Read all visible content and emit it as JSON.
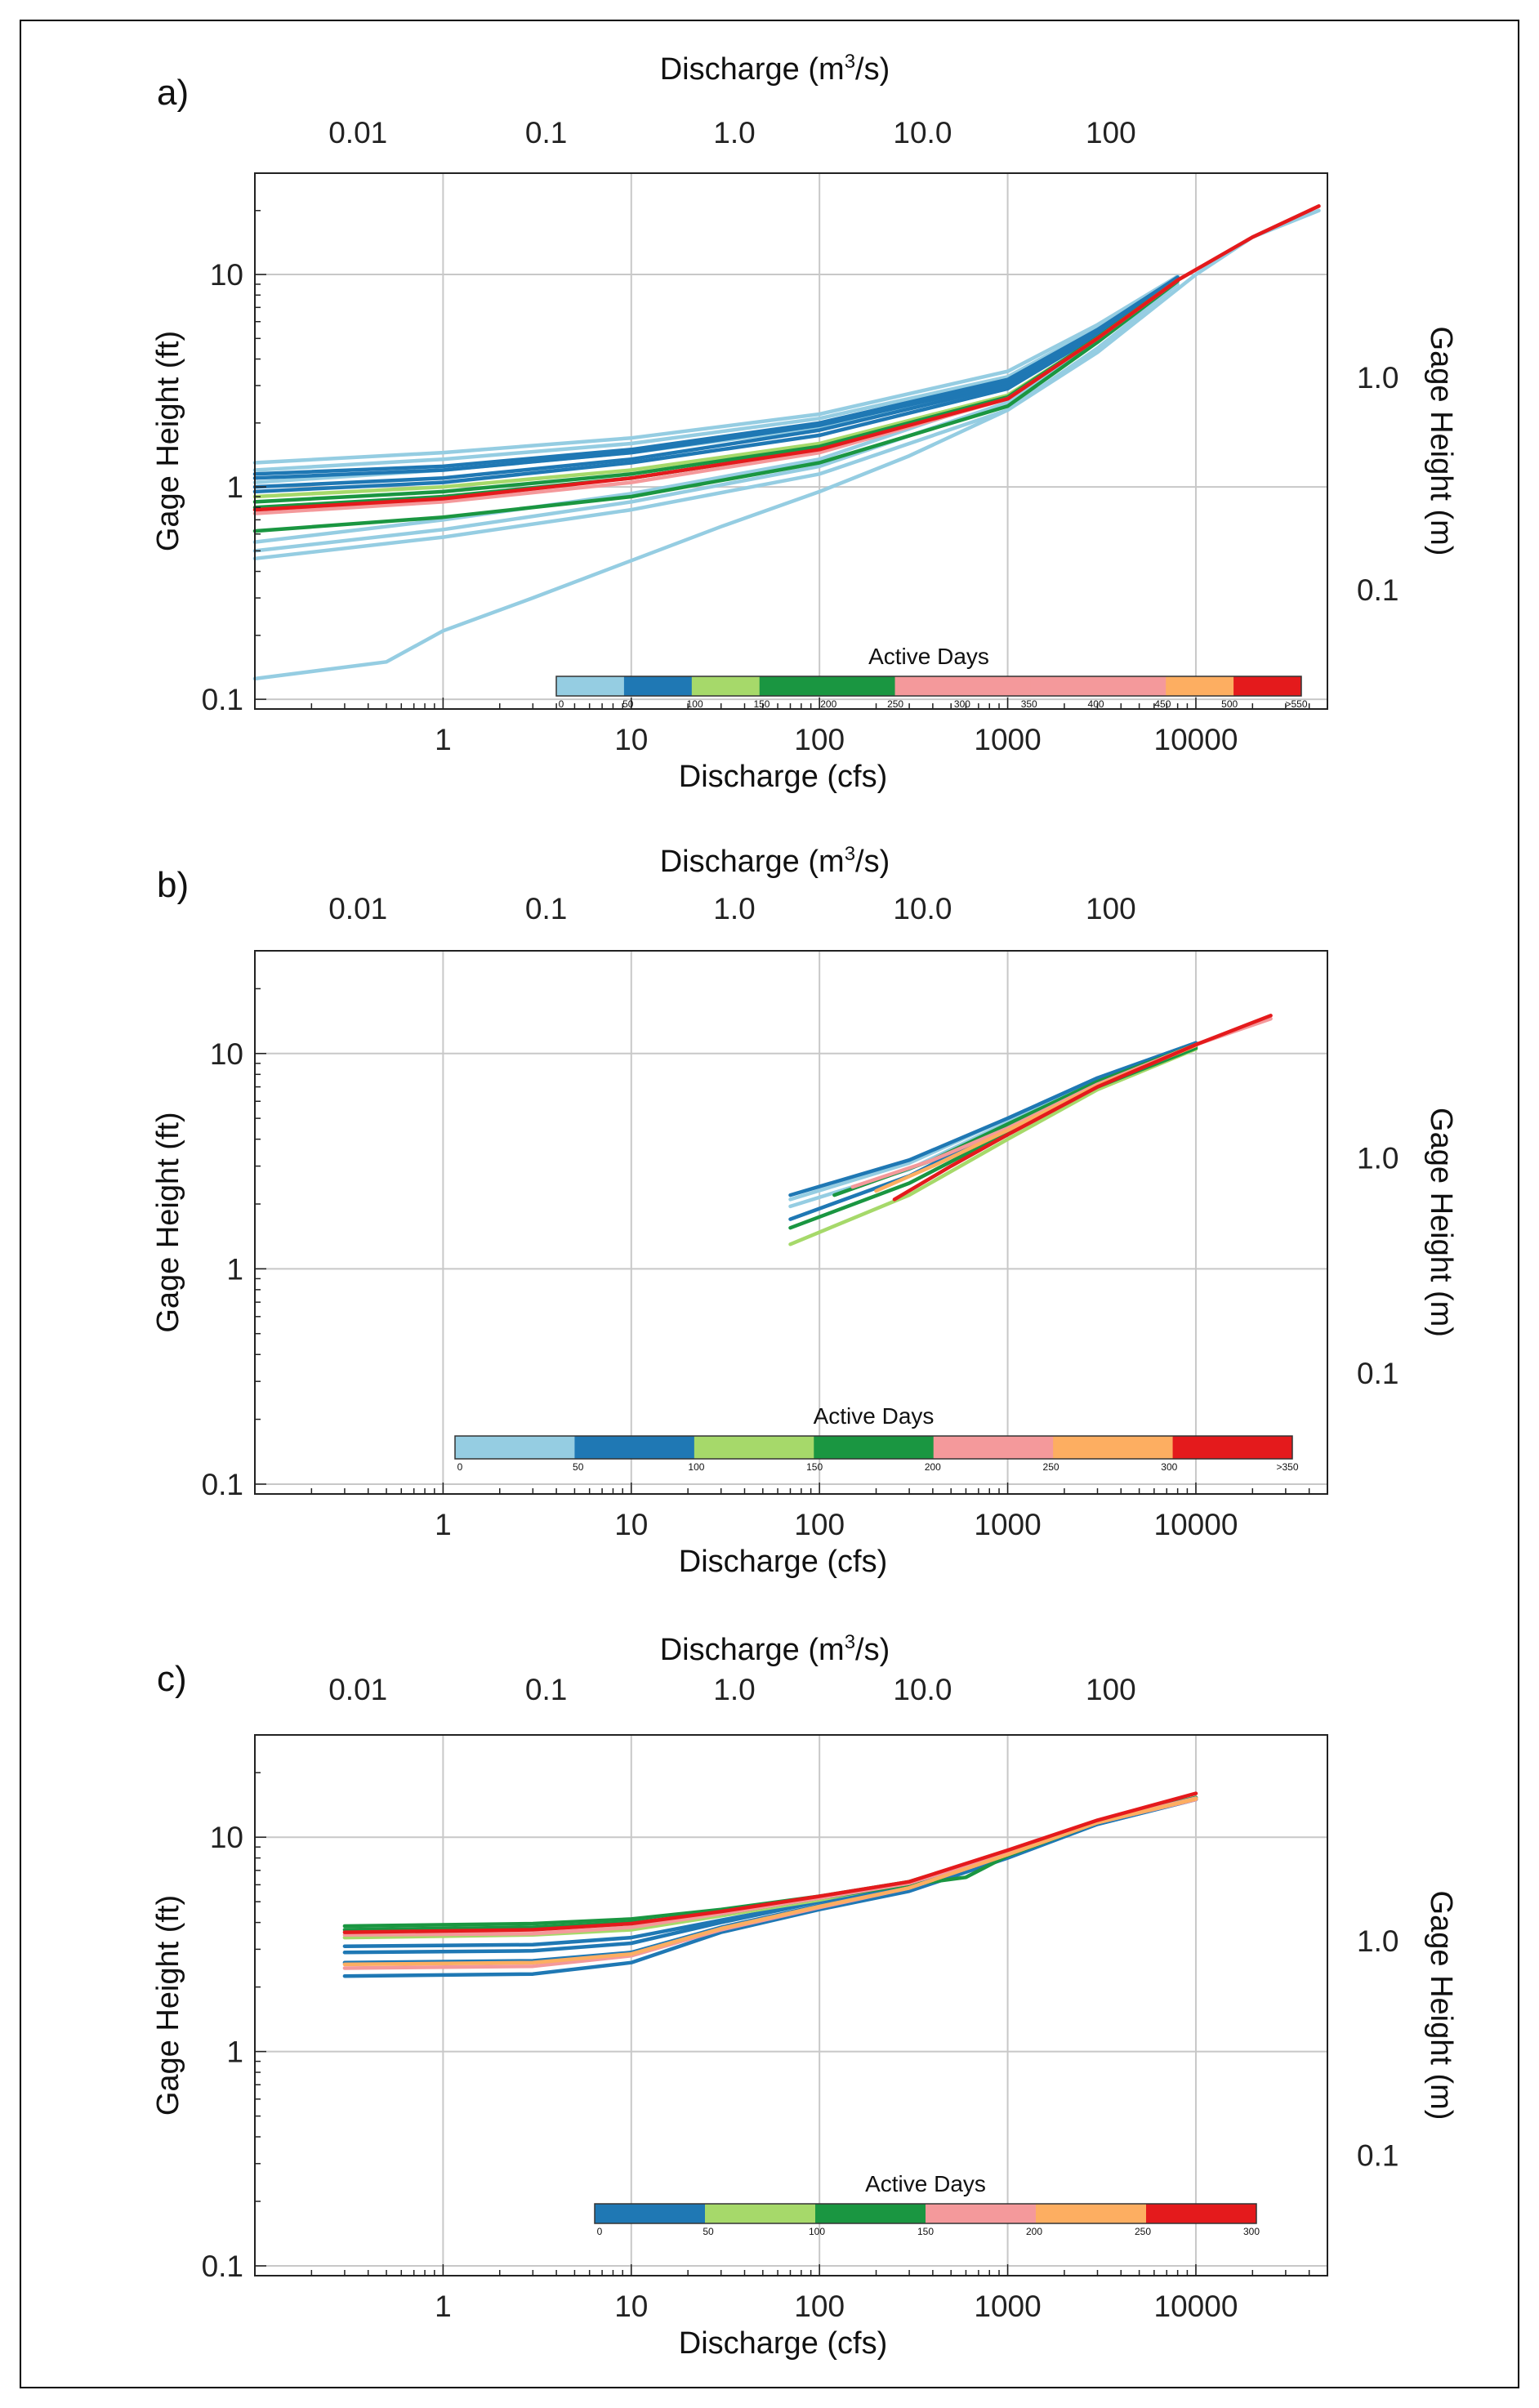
{
  "chart_data": [
    {
      "type": "line",
      "panel_label": "a)",
      "xlabel": "Discharge (cfs)",
      "xlabel_top_main": "Discharge (m",
      "xlabel_top_sup": "3",
      "xlabel_top_tail": "/s)",
      "ylabel": "Gage Height (ft)",
      "ylabel_right": "Gage Height (m)",
      "x_scale": "log",
      "xlim": [
        0.1,
        50000
      ],
      "y_scale": "log",
      "ylim": [
        0.09,
        30
      ],
      "x_ticks": [
        {
          "v": 1,
          "t": "1"
        },
        {
          "v": 10,
          "t": "10"
        },
        {
          "v": 100,
          "t": "100"
        },
        {
          "v": 1000,
          "t": "1000"
        },
        {
          "v": 10000,
          "t": "10000"
        }
      ],
      "y_ticks": [
        {
          "v": 0.1,
          "t": "0.1"
        },
        {
          "v": 1,
          "t": "1"
        },
        {
          "v": 10,
          "t": "10"
        }
      ],
      "top_ticks": [
        {
          "v": 0.01,
          "t": "0.01"
        },
        {
          "v": 0.1,
          "t": "0.1"
        },
        {
          "v": 1.0,
          "t": "1.0"
        },
        {
          "v": 10.0,
          "t": "10.0"
        },
        {
          "v": 100,
          "t": "100"
        }
      ],
      "right_ticks": [
        {
          "v": 0.1,
          "t": "0.1"
        },
        {
          "v": 1.0,
          "t": "1.0"
        }
      ],
      "colorbar": {
        "title": "Active Days",
        "colors": [
          "#95cde2",
          "#1f78b4",
          "#a6d96a",
          "#1a9641",
          "#f4999b",
          "#f4999b",
          "#fdae61",
          "#e41a1c"
        ],
        "widths": [
          1,
          1,
          1,
          2,
          2,
          2,
          1,
          1
        ],
        "labels": [
          "0",
          "50",
          "100",
          "150",
          "200",
          "250",
          "300",
          "350",
          "400",
          "450",
          "500",
          ">550"
        ]
      },
      "series": [
        {
          "color": "#95cde2",
          "x": [
            0.1,
            0.5,
            1,
            3,
            10,
            30,
            100,
            300,
            1000,
            3000,
            10000,
            20000,
            45000
          ],
          "y": [
            0.125,
            0.15,
            0.21,
            0.3,
            0.45,
            0.65,
            0.95,
            1.4,
            2.3,
            4.3,
            10,
            15,
            20
          ]
        },
        {
          "color": "#95cde2",
          "x": [
            0.1,
            1,
            10,
            100,
            1000,
            3000,
            8000
          ],
          "y": [
            0.46,
            0.58,
            0.78,
            1.15,
            2.3,
            4.5,
            9
          ]
        },
        {
          "color": "#95cde2",
          "x": [
            0.1,
            1,
            10,
            100,
            1000,
            3000,
            8000
          ],
          "y": [
            0.5,
            0.63,
            0.85,
            1.25,
            2.5,
            4.8,
            9.3
          ]
        },
        {
          "color": "#95cde2",
          "x": [
            0.1,
            1,
            10,
            100,
            1000,
            3000,
            8000
          ],
          "y": [
            0.55,
            0.7,
            0.93,
            1.35,
            2.7,
            5.0,
            9.5
          ]
        },
        {
          "color": "#95cde2",
          "x": [
            0.1,
            1,
            10,
            100,
            1000,
            3000,
            8000
          ],
          "y": [
            1.05,
            1.2,
            1.45,
            1.9,
            3.0,
            5.3,
            9.5
          ]
        },
        {
          "color": "#95cde2",
          "x": [
            0.1,
            1,
            10,
            100,
            1000,
            3000,
            8000
          ],
          "y": [
            1.2,
            1.35,
            1.6,
            2.1,
            3.3,
            5.6,
            9.7
          ]
        },
        {
          "color": "#95cde2",
          "x": [
            0.1,
            1,
            10,
            100,
            1000,
            3000,
            8000
          ],
          "y": [
            1.3,
            1.45,
            1.7,
            2.2,
            3.5,
            5.8,
            9.8
          ]
        },
        {
          "color": "#1f78b4",
          "x": [
            0.1,
            1,
            10,
            100,
            1000,
            3000,
            8000
          ],
          "y": [
            0.95,
            1.05,
            1.3,
            1.75,
            2.9,
            5.2,
            9.5
          ]
        },
        {
          "color": "#1f78b4",
          "x": [
            0.1,
            1,
            10,
            100,
            1000,
            3000,
            8000
          ],
          "y": [
            1.0,
            1.1,
            1.35,
            1.85,
            3.0,
            5.3,
            9.6
          ]
        },
        {
          "color": "#1f78b4",
          "x": [
            0.1,
            1,
            10,
            100,
            1000,
            3000,
            8000
          ],
          "y": [
            1.1,
            1.2,
            1.45,
            1.95,
            3.1,
            5.4,
            9.7
          ]
        },
        {
          "color": "#1f78b4",
          "x": [
            0.1,
            1,
            10,
            100,
            1000,
            3000,
            8000
          ],
          "y": [
            1.15,
            1.25,
            1.5,
            2.0,
            3.2,
            5.5,
            9.7
          ]
        },
        {
          "color": "#a6d96a",
          "x": [
            0.1,
            1,
            10,
            100,
            1000,
            3000,
            8000
          ],
          "y": [
            0.9,
            1.0,
            1.2,
            1.6,
            2.7,
            5.0,
            9.4
          ]
        },
        {
          "color": "#1a9641",
          "x": [
            0.1,
            1,
            10,
            100,
            1000,
            3000,
            8000
          ],
          "y": [
            0.62,
            0.72,
            0.9,
            1.3,
            2.4,
            4.8,
            9.3
          ]
        },
        {
          "color": "#1a9641",
          "x": [
            0.1,
            1,
            10,
            100,
            1000,
            3000,
            8000
          ],
          "y": [
            0.8,
            0.9,
            1.1,
            1.5,
            2.6,
            5.0,
            9.4
          ]
        },
        {
          "color": "#1a9641",
          "x": [
            0.1,
            1,
            10,
            100,
            1000,
            3000,
            8000
          ],
          "y": [
            0.85,
            0.95,
            1.15,
            1.55,
            2.65,
            5.05,
            9.4
          ]
        },
        {
          "color": "#f4999b",
          "x": [
            0.1,
            1,
            10,
            100,
            1000,
            3000,
            8000
          ],
          "y": [
            0.75,
            0.85,
            1.05,
            1.45,
            2.6,
            5.0,
            9.4
          ]
        },
        {
          "color": "#e41a1c",
          "x": [
            0.1,
            1,
            10,
            100,
            1000,
            3000,
            8000,
            20000,
            45000
          ],
          "y": [
            0.78,
            0.88,
            1.1,
            1.5,
            2.6,
            5.0,
            9.4,
            15,
            21
          ]
        }
      ]
    },
    {
      "type": "line",
      "panel_label": "b)",
      "xlabel": "Discharge (cfs)",
      "xlabel_top_main": "Discharge (m",
      "xlabel_top_sup": "3",
      "xlabel_top_tail": "/s)",
      "ylabel": "Gage Height (ft)",
      "ylabel_right": "Gage Height (m)",
      "x_scale": "log",
      "xlim": [
        0.1,
        50000
      ],
      "y_scale": "log",
      "ylim": [
        0.09,
        30
      ],
      "x_ticks": [
        {
          "v": 1,
          "t": "1"
        },
        {
          "v": 10,
          "t": "10"
        },
        {
          "v": 100,
          "t": "100"
        },
        {
          "v": 1000,
          "t": "1000"
        },
        {
          "v": 10000,
          "t": "10000"
        }
      ],
      "y_ticks": [
        {
          "v": 0.1,
          "t": "0.1"
        },
        {
          "v": 1,
          "t": "1"
        },
        {
          "v": 10,
          "t": "10"
        }
      ],
      "top_ticks": [
        {
          "v": 0.01,
          "t": "0.01"
        },
        {
          "v": 0.1,
          "t": "0.1"
        },
        {
          "v": 1.0,
          "t": "1.0"
        },
        {
          "v": 10.0,
          "t": "10.0"
        },
        {
          "v": 100,
          "t": "100"
        }
      ],
      "right_ticks": [
        {
          "v": 0.1,
          "t": "0.1"
        },
        {
          "v": 1.0,
          "t": "1.0"
        }
      ],
      "colorbar": {
        "title": "Active Days",
        "colors": [
          "#95cde2",
          "#1f78b4",
          "#a6d96a",
          "#1a9641",
          "#f4999b",
          "#fdae61",
          "#e41a1c"
        ],
        "widths": [
          1,
          1,
          1,
          1,
          1,
          1,
          1
        ],
        "labels": [
          "0",
          "50",
          "100",
          "150",
          "200",
          "250",
          "300",
          ">350"
        ]
      },
      "series": [
        {
          "color": "#95cde2",
          "x": [
            70,
            300,
            1000,
            3000,
            10000
          ],
          "y": [
            1.95,
            2.9,
            4.8,
            7.5,
            11
          ]
        },
        {
          "color": "#95cde2",
          "x": [
            70,
            300,
            1000,
            3000,
            10000
          ],
          "y": [
            2.1,
            3.1,
            5.0,
            7.7,
            11.2
          ]
        },
        {
          "color": "#1f78b4",
          "x": [
            70,
            300,
            1000,
            3000,
            10000
          ],
          "y": [
            1.7,
            2.7,
            4.6,
            7.3,
            10.8
          ]
        },
        {
          "color": "#1f78b4",
          "x": [
            70,
            300,
            1000,
            3000,
            10000
          ],
          "y": [
            2.2,
            3.2,
            5.0,
            7.7,
            11.2
          ]
        },
        {
          "color": "#a6d96a",
          "x": [
            70,
            300,
            1000,
            3000,
            10000
          ],
          "y": [
            1.3,
            2.2,
            4.0,
            6.8,
            10.5
          ]
        },
        {
          "color": "#1a9641",
          "x": [
            70,
            300,
            1000,
            3000,
            10000
          ],
          "y": [
            1.55,
            2.5,
            4.3,
            7.0,
            10.6
          ]
        },
        {
          "color": "#1a9641",
          "x": [
            120,
            400,
            1000,
            3000,
            10000
          ],
          "y": [
            2.2,
            3.2,
            4.7,
            7.4,
            11
          ]
        },
        {
          "color": "#f4999b",
          "x": [
            150,
            400,
            1000,
            3000,
            10000,
            25000
          ],
          "y": [
            2.4,
            3.2,
            4.5,
            7.2,
            11,
            14.5
          ]
        },
        {
          "color": "#fdae61",
          "x": [
            200,
            400,
            1000,
            3000,
            10000
          ],
          "y": [
            2.3,
            3.0,
            4.4,
            7.1,
            10.9
          ]
        },
        {
          "color": "#e41a1c",
          "x": [
            250,
            500,
            1000,
            3000,
            10000,
            25000
          ],
          "y": [
            2.1,
            3.0,
            4.2,
            7.0,
            11,
            15
          ]
        }
      ]
    },
    {
      "type": "line",
      "panel_label": "c)",
      "xlabel": "Discharge (cfs)",
      "xlabel_top_main": "Discharge (m",
      "xlabel_top_sup": "3",
      "xlabel_top_tail": "/s)",
      "ylabel": "Gage Height (ft)",
      "ylabel_right": "Gage Height (m)",
      "x_scale": "log",
      "xlim": [
        0.1,
        50000
      ],
      "y_scale": "log",
      "ylim": [
        0.09,
        30
      ],
      "x_ticks": [
        {
          "v": 1,
          "t": "1"
        },
        {
          "v": 10,
          "t": "10"
        },
        {
          "v": 100,
          "t": "100"
        },
        {
          "v": 1000,
          "t": "1000"
        },
        {
          "v": 10000,
          "t": "10000"
        }
      ],
      "y_ticks": [
        {
          "v": 0.1,
          "t": "0.1"
        },
        {
          "v": 1,
          "t": "1"
        },
        {
          "v": 10,
          "t": "10"
        }
      ],
      "top_ticks": [
        {
          "v": 0.01,
          "t": "0.01"
        },
        {
          "v": 0.1,
          "t": "0.1"
        },
        {
          "v": 1.0,
          "t": "1.0"
        },
        {
          "v": 10.0,
          "t": "10.0"
        },
        {
          "v": 100,
          "t": "100"
        }
      ],
      "right_ticks": [
        {
          "v": 0.1,
          "t": "0.1"
        },
        {
          "v": 1.0,
          "t": "1.0"
        }
      ],
      "colorbar": {
        "title": "Active Days",
        "colors": [
          "#1f78b4",
          "#a6d96a",
          "#1a9641",
          "#f4999b",
          "#fdae61",
          "#e41a1c"
        ],
        "widths": [
          1,
          1,
          1,
          1,
          1,
          1
        ],
        "labels": [
          "0",
          "50",
          "100",
          "150",
          "200",
          "250",
          "300"
        ]
      },
      "series": [
        {
          "color": "#1f78b4",
          "x": [
            0.3,
            3,
            10,
            30,
            100,
            300,
            1000,
            3000,
            10000
          ],
          "y": [
            2.25,
            2.3,
            2.6,
            3.6,
            4.6,
            5.6,
            8.0,
            11.5,
            15
          ]
        },
        {
          "color": "#1f78b4",
          "x": [
            0.3,
            3,
            10,
            30,
            100,
            300,
            1000,
            3000,
            10000
          ],
          "y": [
            2.6,
            2.65,
            2.9,
            3.8,
            4.8,
            5.8,
            8.2,
            11.5,
            15
          ]
        },
        {
          "color": "#1f78b4",
          "x": [
            0.3,
            3,
            10,
            30,
            100,
            300,
            1000,
            3000,
            10000
          ],
          "y": [
            2.9,
            2.95,
            3.2,
            4.0,
            5.0,
            6.0,
            8.4,
            11.6,
            15
          ]
        },
        {
          "color": "#1f78b4",
          "x": [
            0.3,
            3,
            10,
            30,
            100,
            300,
            1000,
            3000,
            10000
          ],
          "y": [
            3.1,
            3.15,
            3.4,
            4.1,
            5.0,
            6.0,
            8.4,
            11.6,
            15
          ]
        },
        {
          "color": "#a6d96a",
          "x": [
            0.3,
            3,
            10,
            30,
            100,
            300,
            1000,
            3000,
            10000
          ],
          "y": [
            3.4,
            3.5,
            3.7,
            4.3,
            5.1,
            6.1,
            8.5,
            11.7,
            15.2
          ]
        },
        {
          "color": "#1a9641",
          "x": [
            0.3,
            3,
            10,
            30,
            100,
            300,
            600,
            1000,
            3000,
            10000
          ],
          "y": [
            3.7,
            3.8,
            4.0,
            4.4,
            5.2,
            6.0,
            6.5,
            8.2,
            11.7,
            15.3
          ]
        },
        {
          "color": "#1a9641",
          "x": [
            0.3,
            3,
            10,
            30,
            100,
            300,
            1000,
            3000,
            10000
          ],
          "y": [
            3.85,
            3.95,
            4.15,
            4.6,
            5.3,
            6.2,
            8.6,
            11.8,
            15.3
          ]
        },
        {
          "color": "#f4999b",
          "x": [
            0.3,
            3,
            10,
            30,
            100,
            300,
            1000,
            3000,
            10000
          ],
          "y": [
            2.45,
            2.5,
            2.8,
            3.7,
            4.7,
            5.8,
            8.3,
            11.7,
            15
          ]
        },
        {
          "color": "#f4999b",
          "x": [
            0.3,
            3,
            10,
            30,
            100,
            300,
            1000,
            3000,
            10000
          ],
          "y": [
            3.5,
            3.55,
            3.8,
            4.4,
            5.2,
            6.1,
            8.5,
            11.8,
            15.2
          ]
        },
        {
          "color": "#fdae61",
          "x": [
            0.3,
            3,
            10,
            30,
            100,
            300,
            1000,
            3000,
            10000
          ],
          "y": [
            2.55,
            2.6,
            2.85,
            3.75,
            4.75,
            5.8,
            8.3,
            11.7,
            15.1
          ]
        },
        {
          "color": "#e41a1c",
          "x": [
            0.3,
            3,
            10,
            30,
            100,
            300,
            1000,
            3000,
            10000
          ],
          "y": [
            3.6,
            3.7,
            3.95,
            4.5,
            5.3,
            6.2,
            8.7,
            12.0,
            16
          ]
        }
      ]
    }
  ]
}
